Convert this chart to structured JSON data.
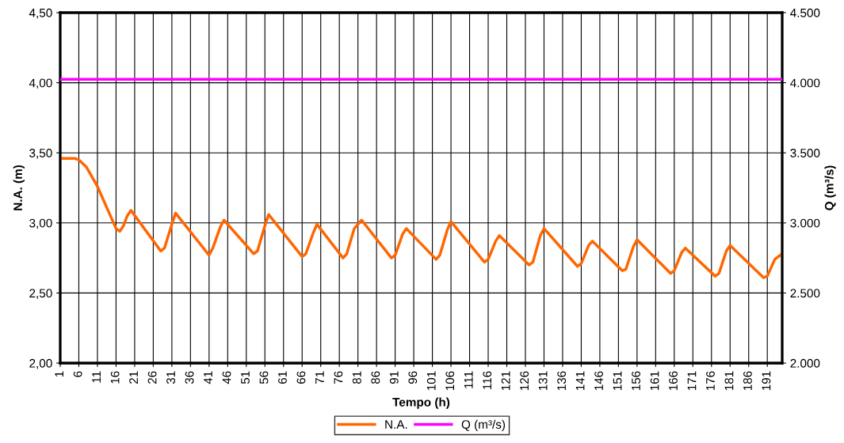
{
  "chart_data": {
    "type": "line",
    "xlabel": "Tempo (h)",
    "ylabel": "N.A. (m)",
    "y2label": "Q (m³/s)",
    "xlim": [
      1,
      195
    ],
    "xticks": [
      1,
      6,
      11,
      16,
      21,
      26,
      31,
      36,
      41,
      46,
      51,
      56,
      61,
      66,
      71,
      76,
      81,
      86,
      91,
      96,
      101,
      106,
      111,
      116,
      121,
      126,
      131,
      136,
      141,
      146,
      151,
      156,
      161,
      166,
      171,
      176,
      181,
      186,
      191
    ],
    "ylim": [
      2.0,
      4.5
    ],
    "yticks": [
      {
        "value": 2.0,
        "label": "2,00"
      },
      {
        "value": 2.5,
        "label": "2,50"
      },
      {
        "value": 3.0,
        "label": "3,00"
      },
      {
        "value": 3.5,
        "label": "3,50"
      },
      {
        "value": 4.0,
        "label": "4,00"
      },
      {
        "value": 4.5,
        "label": "4,50"
      }
    ],
    "y2lim": [
      2000,
      4500
    ],
    "y2ticks": [
      {
        "value": 2000,
        "label": "2.000"
      },
      {
        "value": 2500,
        "label": "2.500"
      },
      {
        "value": 3000,
        "label": "3.000"
      },
      {
        "value": 3500,
        "label": "3.500"
      },
      {
        "value": 4000,
        "label": "4.000"
      },
      {
        "value": 4500,
        "label": "4.500"
      }
    ],
    "grid": true,
    "legend": "bottom",
    "line_style": "solid",
    "marker": "none",
    "series": [
      {
        "name": "N.A.",
        "color": "#ff6600",
        "x": [
          1,
          5,
          6,
          8,
          11,
          14,
          16,
          17,
          18,
          19,
          20,
          28,
          29,
          31,
          32,
          41,
          42,
          44,
          45,
          53,
          54,
          56,
          57,
          66,
          67,
          69,
          70,
          77,
          78,
          80,
          82,
          90,
          91,
          93,
          94,
          102,
          103,
          105,
          106,
          115,
          116,
          118,
          119,
          127,
          128,
          130,
          131,
          140,
          141,
          143,
          144,
          152,
          153,
          155,
          156,
          165,
          166,
          168,
          169,
          177,
          178,
          180,
          181,
          190,
          191,
          193,
          195
        ],
        "values": [
          3.46,
          3.46,
          3.45,
          3.4,
          3.26,
          3.08,
          2.96,
          2.94,
          2.98,
          3.05,
          3.09,
          2.8,
          2.82,
          2.99,
          3.07,
          2.77,
          2.82,
          2.97,
          3.02,
          2.78,
          2.8,
          2.98,
          3.06,
          2.76,
          2.78,
          2.93,
          2.99,
          2.75,
          2.78,
          2.96,
          3.02,
          2.75,
          2.77,
          2.92,
          2.96,
          2.74,
          2.77,
          2.95,
          3.01,
          2.72,
          2.74,
          2.87,
          2.91,
          2.7,
          2.72,
          2.91,
          2.96,
          2.69,
          2.71,
          2.84,
          2.87,
          2.66,
          2.67,
          2.83,
          2.88,
          2.64,
          2.66,
          2.79,
          2.82,
          2.62,
          2.64,
          2.8,
          2.84,
          2.61,
          2.62,
          2.74,
          2.78
        ]
      },
      {
        "name": "Q (m³/s)",
        "color": "#ff00ff",
        "axis": "y2",
        "x": [
          1,
          195
        ],
        "values": [
          4025,
          4025
        ]
      }
    ]
  }
}
